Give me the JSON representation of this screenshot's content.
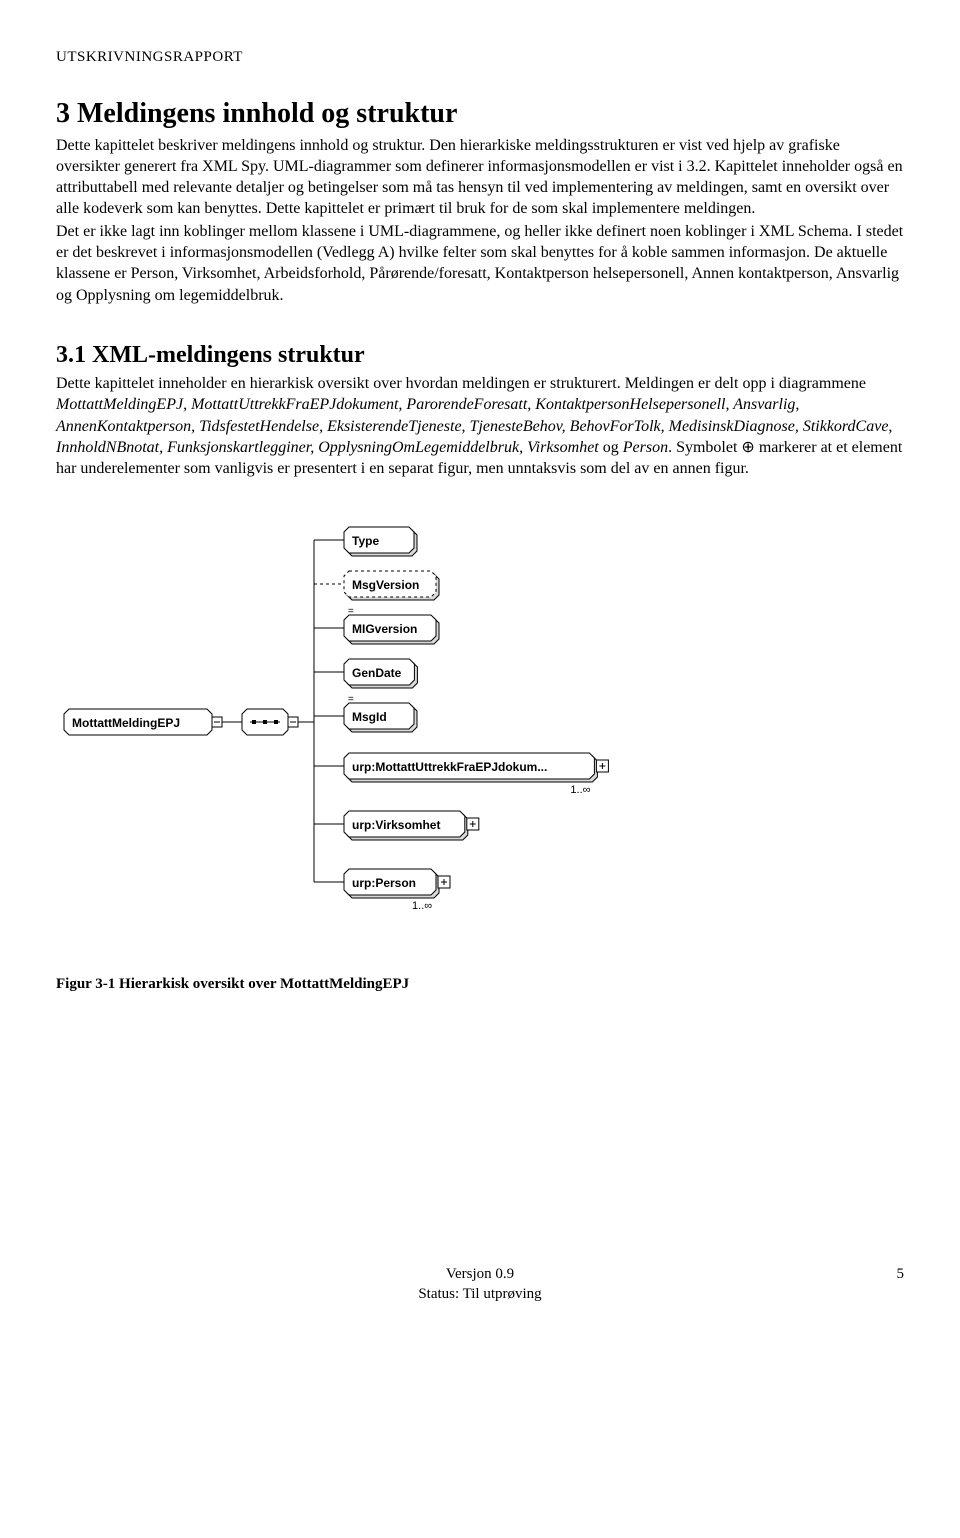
{
  "header": {
    "running": "UTSKRIVNINGSRAPPORT"
  },
  "section1": {
    "heading": "3  Meldingens innhold og struktur",
    "p1a": "Dette kapittelet beskriver meldingens innhold og struktur. Den hierarkiske meldingsstrukturen er vist ved hjelp av grafiske oversikter generert fra XML Spy. UML-diagrammer som definerer informasjonsmodellen er vist i 3.2. Kapittelet inneholder også en attributtabell med relevante detaljer og betingelser som må tas hensyn til ved implementering av meldingen, samt en oversikt over alle kodeverk som kan benyttes. Dette kapittelet er primært til bruk for de som skal implementere meldingen.",
    "p1b": "Det er ikke lagt inn koblinger mellom klassene i UML-diagrammene, og heller ikke definert noen koblinger i XML Schema. I stedet er det beskrevet i informasjonsmodellen (Vedlegg A) hvilke felter som skal benyttes for å koble sammen informasjon. De aktuelle klassene er Person, Virksomhet, Arbeidsforhold, Pårørende/foresatt, Kontaktperson helsepersonell, Annen kontaktperson, Ansvarlig og Opplysning om legemiddelbruk."
  },
  "section2": {
    "heading": "3.1   XML-meldingens struktur",
    "lead": "Dette kapittelet inneholder en hierarkisk oversikt over hvordan meldingen er strukturert. Meldingen er delt opp i diagrammene ",
    "italics_list": "MottattMeldingEPJ, MottattUttrekkFraEPJdokument, ParorendeForesatt, KontaktpersonHelsepersonell, Ansvarlig, AnnenKontaktperson, TidsfestetHendelse, EksisterendeTjeneste, TjenesteBehov, BehovForTolk, MedisinskDiagnose, StikkordCave, InnholdNBnotat, Funksjonskartlegginer, OpplysningOmLegemiddelbruk, Virksomhet",
    "between": " og ",
    "italics_last": "Person",
    "after1": ". Symbolet ",
    "symbol": "⊕",
    "after2": " markerer at et element har underelementer som vanligvis er presentert i en separat figur, men unntaksvis som del av en annen figur."
  },
  "diagram": {
    "root": "MottattMeldingEPJ",
    "nodes": [
      {
        "label": "Type",
        "dashed": false,
        "line_label": "",
        "expand": false
      },
      {
        "label": "MsgVersion",
        "dashed": true,
        "line_label": "",
        "expand": false
      },
      {
        "label": "MIGversion",
        "dashed": false,
        "line_label": "=",
        "expand": false
      },
      {
        "label": "GenDate",
        "dashed": false,
        "line_label": "",
        "expand": false
      },
      {
        "label": "MsgId",
        "dashed": false,
        "line_label": "=",
        "expand": false
      },
      {
        "label": "urp:MottattUttrekkFraEPJdokum...",
        "dashed": false,
        "line_label": "",
        "expand": true,
        "card": "1..∞"
      },
      {
        "label": "urp:Virksomhet",
        "dashed": false,
        "line_label": "",
        "expand": true,
        "card": ""
      },
      {
        "label": "urp:Person",
        "dashed": false,
        "line_label": "",
        "expand": true,
        "card": "1..∞"
      }
    ],
    "style": {
      "box_stroke": "#000000",
      "dash": "3,3",
      "font": "Arial, Helvetica, sans-serif",
      "font_size_label": 12,
      "font_size_card": 11,
      "bg": "#ffffff",
      "inner_fill": "#ffffff"
    }
  },
  "figure_caption": "Figur 3-1 Hierarkisk oversikt over MottattMeldingEPJ",
  "footer": {
    "line1": "Versjon 0.9",
    "line2": "Status: Til utprøving",
    "page": "5"
  }
}
